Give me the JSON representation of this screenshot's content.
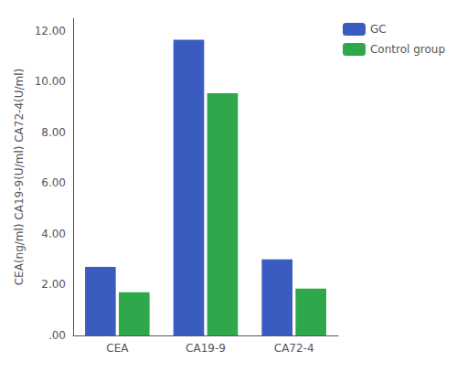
{
  "chart_data": {
    "type": "bar",
    "categories": [
      "CEA",
      "CA19-9",
      "CA72-4"
    ],
    "series": [
      {
        "name": "GC",
        "color": "#3a5bbf",
        "values": [
          2.7,
          11.65,
          3.0
        ]
      },
      {
        "name": "Control group",
        "color": "#2ea84a",
        "values": [
          1.7,
          9.55,
          1.85
        ]
      }
    ],
    "ylabel": "CEA(ng/ml) CA19-9(U/ml) CA72-4(U/ml)",
    "ylim": [
      0,
      12.5
    ],
    "yticks": [
      {
        "value": 0,
        "label": ".00"
      },
      {
        "value": 2,
        "label": "2.00"
      },
      {
        "value": 4,
        "label": "4.00"
      },
      {
        "value": 6,
        "label": "6.00"
      },
      {
        "value": 8,
        "label": "8.00"
      },
      {
        "value": 10,
        "label": "10.00"
      },
      {
        "value": 12,
        "label": "12.00"
      }
    ],
    "grid": false,
    "legend": "right"
  }
}
